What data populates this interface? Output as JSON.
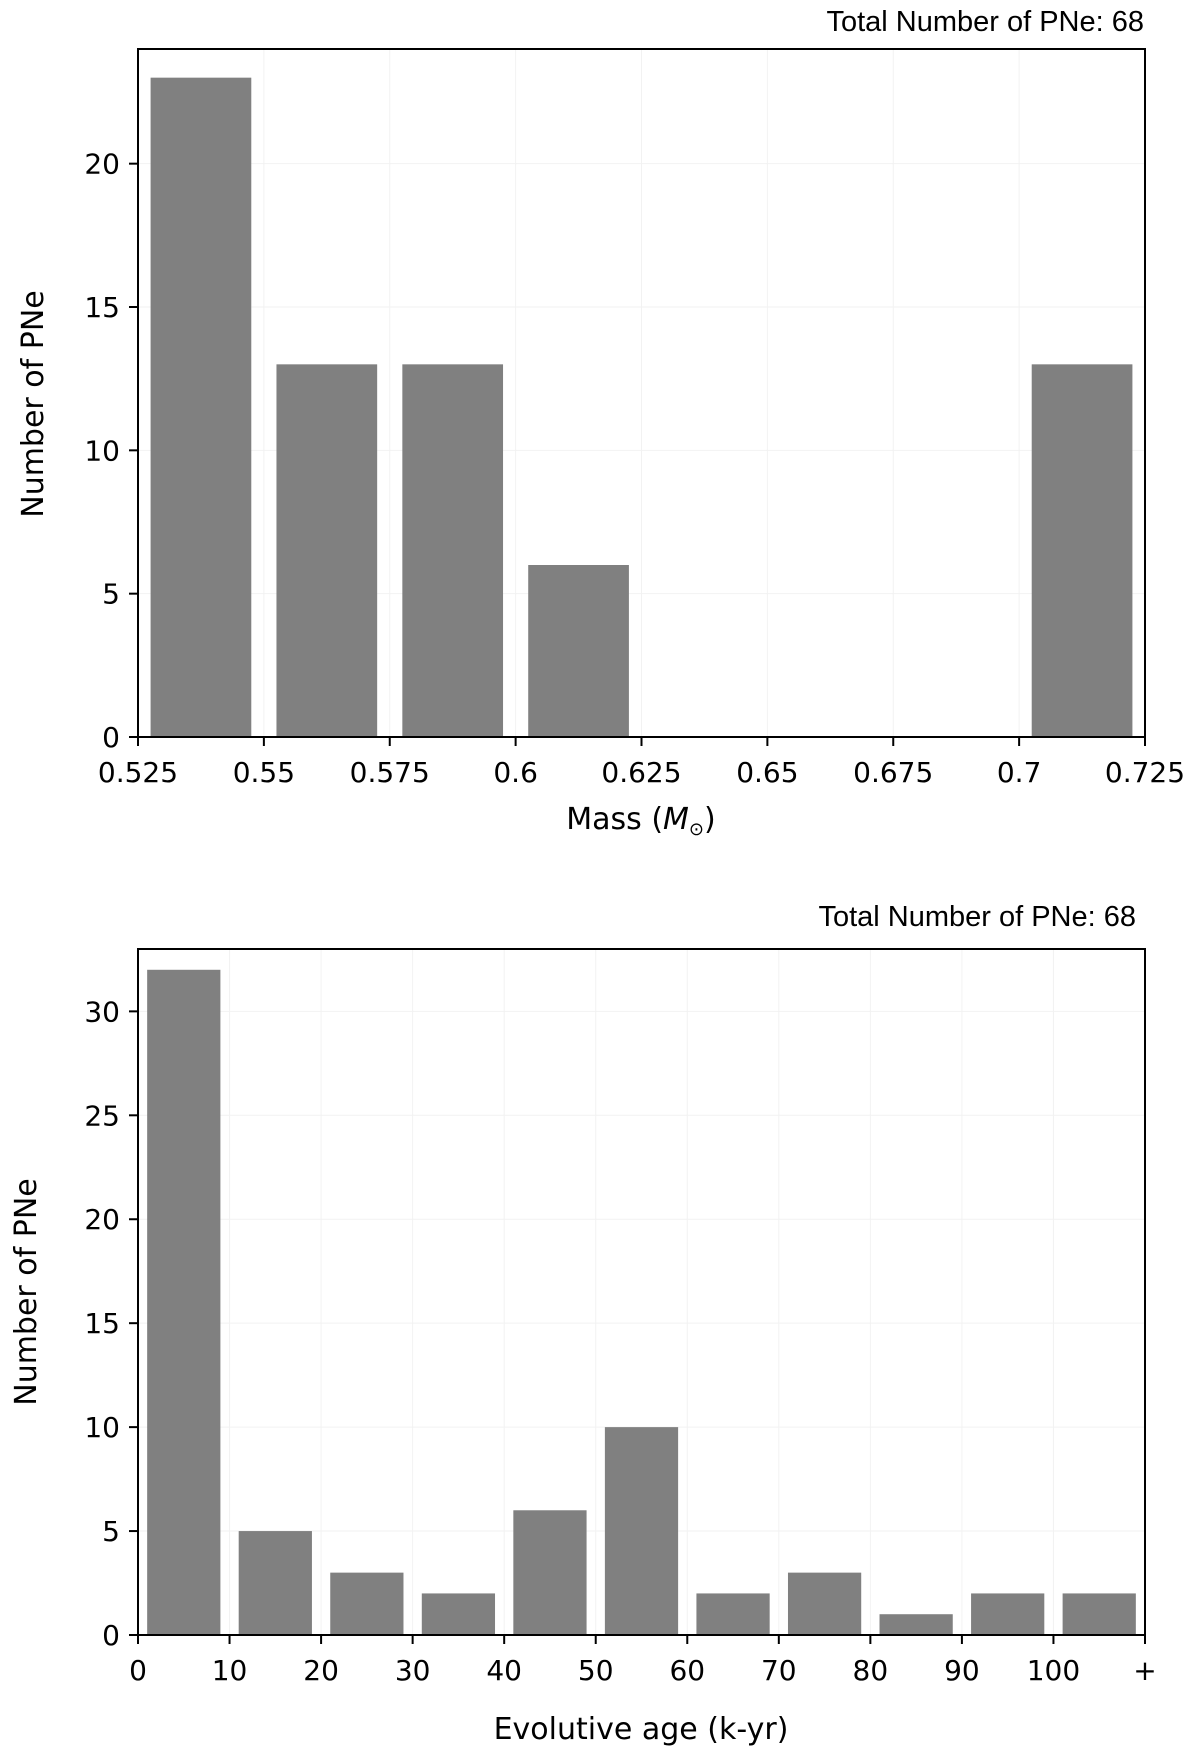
{
  "chart_data": [
    {
      "type": "bar",
      "annotation": "Total Number of PNe: 68",
      "xlabel": "Mass",
      "xlabel_unit": "M",
      "ylabel": "Number of PNe",
      "xticks": [
        "0.525",
        "0.55",
        "0.575",
        "0.6",
        "0.625",
        "0.65",
        "0.675",
        "0.7",
        "0.725"
      ],
      "xlim": [
        0.525,
        0.725
      ],
      "ylim": [
        0,
        24
      ],
      "yticks": [
        0,
        5,
        10,
        15,
        20
      ],
      "bins": [
        {
          "start": 0.525,
          "end": 0.55,
          "value": 23
        },
        {
          "start": 0.55,
          "end": 0.575,
          "value": 13
        },
        {
          "start": 0.575,
          "end": 0.6,
          "value": 13
        },
        {
          "start": 0.6,
          "end": 0.625,
          "value": 6
        },
        {
          "start": 0.625,
          "end": 0.65,
          "value": 0
        },
        {
          "start": 0.65,
          "end": 0.675,
          "value": 0
        },
        {
          "start": 0.675,
          "end": 0.7,
          "value": 0
        },
        {
          "start": 0.7,
          "end": 0.725,
          "value": 13
        }
      ],
      "bar_color": "#808080",
      "grid": true
    },
    {
      "type": "bar",
      "annotation": "Total Number of PNe: 68",
      "xlabel": "Evolutive age (k-yr)",
      "ylabel": "Number of PNe",
      "xticks": [
        "0",
        "10",
        "20",
        "30",
        "40",
        "50",
        "60",
        "70",
        "80",
        "90",
        "100",
        "+"
      ],
      "ylim": [
        0,
        33
      ],
      "yticks": [
        0,
        5,
        10,
        15,
        20,
        25,
        30
      ],
      "bins": [
        {
          "range": "0-10",
          "value": 32
        },
        {
          "range": "10-20",
          "value": 5
        },
        {
          "range": "20-30",
          "value": 3
        },
        {
          "range": "30-40",
          "value": 2
        },
        {
          "range": "40-50",
          "value": 6
        },
        {
          "range": "50-60",
          "value": 10
        },
        {
          "range": "60-70",
          "value": 2
        },
        {
          "range": "70-80",
          "value": 3
        },
        {
          "range": "80-90",
          "value": 1
        },
        {
          "range": "90-100",
          "value": 2
        },
        {
          "range": "100+",
          "value": 2
        }
      ],
      "bar_color": "#808080",
      "grid": true
    }
  ]
}
